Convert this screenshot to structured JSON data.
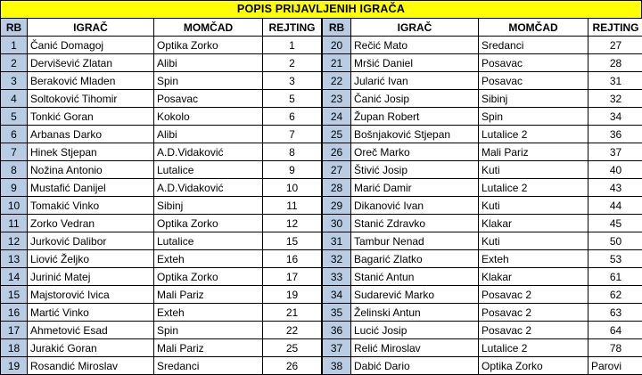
{
  "title": "POPIS PRIJAVLJENIH IGRAČA",
  "columns": {
    "rb": "RB",
    "player": "IGRAČ",
    "team": "MOMČAD",
    "rating": "REJTING"
  },
  "colors": {
    "title_bg": "#FFFF00",
    "rb_column_bg": "#B8CCE4",
    "cell_bg": "#FFFFFF",
    "border": "#000000",
    "text": "#000000"
  },
  "tables": [
    {
      "name": "left",
      "rows": [
        {
          "rb": "1",
          "player": "Čanić Domagoj",
          "team": "Optika Zorko",
          "rating": "1"
        },
        {
          "rb": "2",
          "player": "Dervišević Zlatan",
          "team": "Alibi",
          "rating": "2"
        },
        {
          "rb": "3",
          "player": "Beraković Mladen",
          "team": "Spin",
          "rating": "3"
        },
        {
          "rb": "4",
          "player": "Soltoković Tihomir",
          "team": "Posavac",
          "rating": "5"
        },
        {
          "rb": "5",
          "player": "Tonkić Goran",
          "team": "Kokolo",
          "rating": "6"
        },
        {
          "rb": "6",
          "player": "Arbanas Darko",
          "team": "Alibi",
          "rating": "7"
        },
        {
          "rb": "7",
          "player": "Hinek Stjepan",
          "team": "A.D.Vidaković",
          "rating": "8"
        },
        {
          "rb": "8",
          "player": "Nožina Antonio",
          "team": "Lutalice",
          "rating": "9"
        },
        {
          "rb": "9",
          "player": "Mustafić Danijel",
          "team": "A.D.Vidaković",
          "rating": "10"
        },
        {
          "rb": "10",
          "player": "Tomakić Vinko",
          "team": "Sibinj",
          "rating": "11"
        },
        {
          "rb": "11",
          "player": "Zorko Vedran",
          "team": "Optika Zorko",
          "rating": "12"
        },
        {
          "rb": "12",
          "player": "Jurković Dalibor",
          "team": "Lutalice",
          "rating": "15"
        },
        {
          "rb": "13",
          "player": "Liović Željko",
          "team": "Exteh",
          "rating": "16"
        },
        {
          "rb": "14",
          "player": "Jurinić Matej",
          "team": "Optika Zorko",
          "rating": "17"
        },
        {
          "rb": "15",
          "player": "Majstorović Ivica",
          "team": "Mali Pariz",
          "rating": "19"
        },
        {
          "rb": "16",
          "player": "Martić Vinko",
          "team": "Exteh",
          "rating": "21"
        },
        {
          "rb": "17",
          "player": "Ahmetović Esad",
          "team": "Spin",
          "rating": "22"
        },
        {
          "rb": "18",
          "player": "Jurakić Goran",
          "team": "Mali Pariz",
          "rating": "25"
        },
        {
          "rb": "19",
          "player": "Rosandić Miroslav",
          "team": "Sredanci",
          "rating": "26"
        }
      ]
    },
    {
      "name": "right",
      "rows": [
        {
          "rb": "20",
          "player": "Rečić Mato",
          "team": "Sredanci",
          "rating": "27"
        },
        {
          "rb": "21",
          "player": "Mršić Daniel",
          "team": "Posavac",
          "rating": "28"
        },
        {
          "rb": "22",
          "player": "Jularić Ivan",
          "team": "Posavac",
          "rating": "31"
        },
        {
          "rb": "23",
          "player": "Čanić Josip",
          "team": "Sibinj",
          "rating": "32"
        },
        {
          "rb": "24",
          "player": "Župan Robert",
          "team": "Spin",
          "rating": "34"
        },
        {
          "rb": "25",
          "player": "Bošnjaković Stjepan",
          "team": "Lutalice 2",
          "rating": "36"
        },
        {
          "rb": "26",
          "player": "Oreč Marko",
          "team": "Mali Pariz",
          "rating": "37"
        },
        {
          "rb": "27",
          "player": "Štivić Josip",
          "team": "Kuti",
          "rating": "40"
        },
        {
          "rb": "28",
          "player": "Marić Damir",
          "team": "Lutalice 2",
          "rating": "43"
        },
        {
          "rb": "29",
          "player": "Dikanović Ivan",
          "team": "Kuti",
          "rating": "44"
        },
        {
          "rb": "30",
          "player": "Stanić Zdravko",
          "team": "Klakar",
          "rating": "45"
        },
        {
          "rb": "31",
          "player": "Tambur Nenad",
          "team": "Kuti",
          "rating": "50"
        },
        {
          "rb": "32",
          "player": "Bagarić Zlatko",
          "team": "Exteh",
          "rating": "53"
        },
        {
          "rb": "33",
          "player": "Stanić Antun",
          "team": "Klakar",
          "rating": "61"
        },
        {
          "rb": "34",
          "player": "Sudarević Marko",
          "team": "Posavac 2",
          "rating": "62"
        },
        {
          "rb": "35",
          "player": "Želinski Antun",
          "team": "Posavac 2",
          "rating": "63"
        },
        {
          "rb": "36",
          "player": "Lucić Josip",
          "team": "Posavac 2",
          "rating": "64"
        },
        {
          "rb": "37",
          "player": "Relić Miroslav",
          "team": "Lutalice 2",
          "rating": "78"
        },
        {
          "rb": "38",
          "player": "Dabić Dario",
          "team": "Optika Zorko",
          "rating": "Parovi"
        }
      ]
    }
  ]
}
